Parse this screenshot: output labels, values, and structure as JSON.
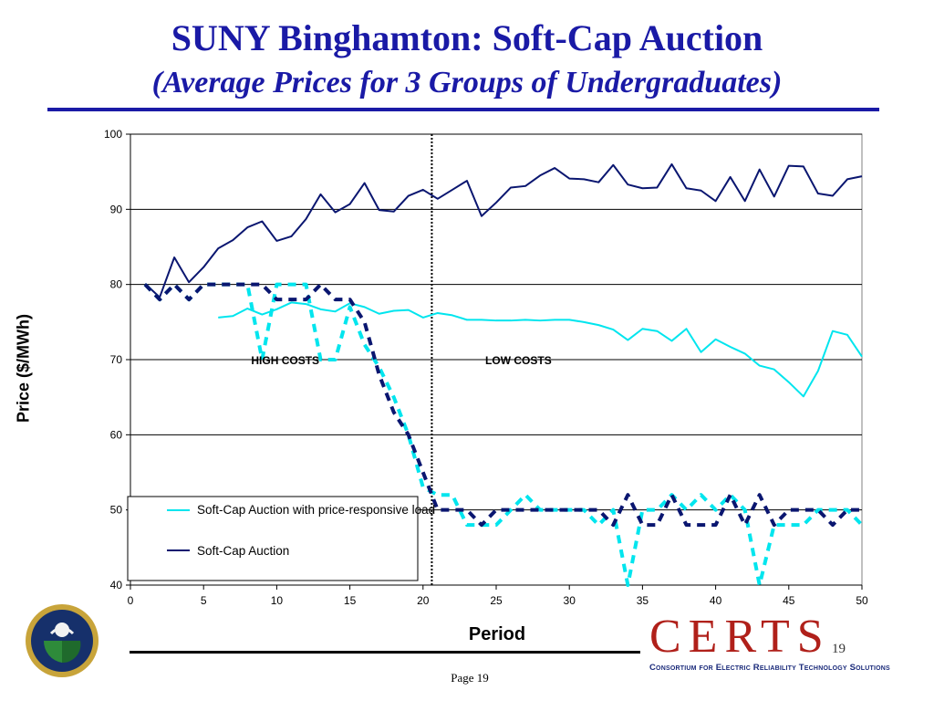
{
  "title_line1": "SUNY Binghamton: Soft-Cap Auction",
  "title_line2": "(Average Prices for 3 Groups of Undergraduates)",
  "page_label": "Page 19",
  "slide_number": "19",
  "logo": {
    "certs": "CERTS",
    "certs_subtitle": "Consortium for Electric Reliability Technology Solutions"
  },
  "colors": {
    "title": "#1a1aa6",
    "price_responsive": "#00e5ee",
    "soft_cap": "#0a1670",
    "certs_red": "#b0201a"
  },
  "chart_data": {
    "type": "line",
    "xlabel": "Period",
    "ylabel": "Price ($/MWh)",
    "xlim": [
      0,
      50
    ],
    "ylim": [
      40,
      100
    ],
    "x_ticks": [
      0,
      5,
      10,
      15,
      20,
      25,
      30,
      35,
      40,
      45,
      50
    ],
    "y_ticks": [
      40,
      50,
      60,
      70,
      80,
      90,
      100
    ],
    "grid": "horizontal",
    "vertical_marker_x": 20.6,
    "annotations": [
      {
        "text": "HIGH COSTS",
        "x": 10,
        "y": 69
      },
      {
        "text": "LOW COSTS",
        "x": 26,
        "y": 69
      }
    ],
    "legend_position": "bottom-left",
    "series": [
      {
        "name": "Soft-Cap Auction with price-responsive load",
        "style": "solid",
        "color": "#00e5ee",
        "x": [
          6,
          7,
          8,
          9,
          10,
          11,
          12,
          13,
          14,
          15,
          16,
          17,
          18,
          19,
          20,
          21,
          22,
          23,
          24,
          25,
          26,
          27,
          28,
          29,
          30,
          31,
          32,
          33,
          34,
          35,
          36,
          37,
          38,
          39,
          40,
          41,
          42,
          43,
          44,
          45,
          46,
          47,
          48,
          49,
          50
        ],
        "y": [
          75.6,
          75.8,
          76.8,
          76.0,
          76.7,
          77.6,
          77.4,
          76.7,
          76.4,
          77.5,
          77.0,
          76.1,
          76.5,
          76.6,
          75.6,
          76.2,
          75.9,
          75.3,
          75.3,
          75.2,
          75.2,
          75.3,
          75.2,
          75.3,
          75.3,
          75.0,
          74.6,
          74.0,
          72.6,
          74.1,
          73.8,
          72.5,
          74.1,
          71.0,
          72.7,
          71.7,
          70.8,
          69.2,
          68.7,
          67.0,
          65.1,
          68.5,
          73.8,
          73.3,
          70.4
        ]
      },
      {
        "name": "Soft-Cap Auction",
        "style": "solid",
        "color": "#0a1670",
        "x": [
          1,
          2,
          3,
          4,
          5,
          6,
          7,
          8,
          9,
          10,
          11,
          12,
          13,
          14,
          15,
          16,
          17,
          18,
          19,
          20,
          21,
          22,
          23,
          24,
          25,
          26,
          27,
          28,
          29,
          30,
          31,
          32,
          33,
          34,
          35,
          36,
          37,
          38,
          39,
          40,
          41,
          42,
          43,
          44,
          45,
          46,
          47,
          48,
          49,
          50
        ],
        "y": [
          80.1,
          78.3,
          83.6,
          80.3,
          82.3,
          84.8,
          85.9,
          87.6,
          88.4,
          85.8,
          86.4,
          88.7,
          92.0,
          89.6,
          90.7,
          93.5,
          89.9,
          89.7,
          91.8,
          92.6,
          91.4,
          92.6,
          93.8,
          89.1,
          90.9,
          92.9,
          93.1,
          94.5,
          95.5,
          94.1,
          94.0,
          93.6,
          95.9,
          93.3,
          92.8,
          92.9,
          96.0,
          92.8,
          92.5,
          91.1,
          94.3,
          91.1,
          95.3,
          91.7,
          95.8,
          95.7,
          92.1,
          91.8,
          94.0,
          94.4
        ]
      },
      {
        "style": "dashed",
        "color": "#00e5ee",
        "x": [
          1,
          2,
          3,
          4,
          5,
          6,
          7,
          8,
          9,
          10,
          11,
          12,
          13,
          14,
          15,
          16,
          17,
          18,
          19,
          20,
          21,
          22,
          23,
          24,
          25,
          26,
          27,
          28,
          29,
          30,
          31,
          32,
          33,
          34,
          35,
          36,
          37,
          38,
          39,
          40,
          41,
          42,
          43,
          44,
          45,
          46,
          47,
          48,
          49,
          50
        ],
        "y": [
          80,
          78,
          80,
          78,
          80,
          80,
          80,
          80,
          70,
          80,
          80,
          80,
          70,
          70,
          77,
          72,
          69,
          65,
          60,
          53,
          52,
          52,
          48,
          48,
          48,
          50,
          52,
          50,
          50,
          50,
          50,
          48,
          50,
          40,
          50,
          50,
          52,
          50,
          52,
          50,
          52,
          50,
          40,
          48,
          48,
          48,
          50,
          50,
          50,
          48
        ]
      },
      {
        "style": "dashed",
        "color": "#0a1670",
        "x": [
          1,
          2,
          3,
          4,
          5,
          6,
          7,
          8,
          9,
          10,
          11,
          12,
          13,
          14,
          15,
          16,
          17,
          18,
          19,
          20,
          21,
          22,
          23,
          24,
          25,
          26,
          27,
          28,
          29,
          30,
          31,
          32,
          33,
          34,
          35,
          36,
          37,
          38,
          39,
          40,
          41,
          42,
          43,
          44,
          45,
          46,
          47,
          48,
          49,
          50
        ],
        "y": [
          80,
          78,
          80,
          78,
          80,
          80,
          80,
          80,
          80,
          78,
          78,
          78,
          80,
          78,
          78,
          75,
          68,
          63,
          60,
          55,
          50,
          50,
          50,
          48,
          50,
          50,
          50,
          50,
          50,
          50,
          50,
          50,
          48,
          52,
          48,
          48,
          52,
          48,
          48,
          48,
          52,
          48,
          52,
          48,
          50,
          50,
          50,
          48,
          50,
          50
        ]
      }
    ]
  }
}
